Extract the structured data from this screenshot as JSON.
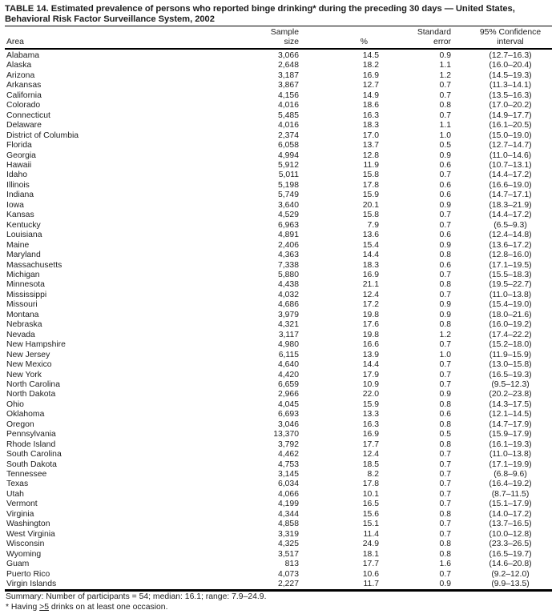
{
  "document": {
    "title": "TABLE 14. Estimated prevalence of persons who reported binge drinking* during the preceding 30 days — United States, Behavioral Risk Factor Surveillance System, 2002",
    "summary": "Summary: Number of participants = 54; median: 16.1; range: 7.9–24.9.",
    "footnote": {
      "prefix": "* Having ",
      "underlined": ">5",
      "suffix": " drinks on at least one occasion."
    }
  },
  "table": {
    "headers": [
      "Area",
      "Sample\nsize",
      "%",
      "Standard\nerror",
      "95% Confidence\ninterval"
    ],
    "column_names": [
      "area",
      "sample-size",
      "percent",
      "standard-error",
      "confidence-interval"
    ],
    "column_aligns": [
      "left",
      "right",
      "right",
      "right",
      "center"
    ],
    "rows": [
      [
        "Alabama",
        "3,066",
        "14.5",
        "0.9",
        "(12.7–16.3)"
      ],
      [
        "Alaska",
        "2,648",
        "18.2",
        "1.1",
        "(16.0–20.4)"
      ],
      [
        "Arizona",
        "3,187",
        "16.9",
        "1.2",
        "(14.5–19.3)"
      ],
      [
        "Arkansas",
        "3,867",
        "12.7",
        "0.7",
        "(11.3–14.1)"
      ],
      [
        "California",
        "4,156",
        "14.9",
        "0.7",
        "(13.5–16.3)"
      ],
      [
        "Colorado",
        "4,016",
        "18.6",
        "0.8",
        "(17.0–20.2)"
      ],
      [
        "Connecticut",
        "5,485",
        "16.3",
        "0.7",
        "(14.9–17.7)"
      ],
      [
        "Delaware",
        "4,016",
        "18.3",
        "1.1",
        "(16.1–20.5)"
      ],
      [
        "District of Columbia",
        "2,374",
        "17.0",
        "1.0",
        "(15.0–19.0)"
      ],
      [
        "Florida",
        "6,058",
        "13.7",
        "0.5",
        "(12.7–14.7)"
      ],
      [
        "Georgia",
        "4,994",
        "12.8",
        "0.9",
        "(11.0–14.6)"
      ],
      [
        "Hawaii",
        "5,912",
        "11.9",
        "0.6",
        "(10.7–13.1)"
      ],
      [
        "Idaho",
        "5,011",
        "15.8",
        "0.7",
        "(14.4–17.2)"
      ],
      [
        "Illinois",
        "5,198",
        "17.8",
        "0.6",
        "(16.6–19.0)"
      ],
      [
        "Indiana",
        "5,749",
        "15.9",
        "0.6",
        "(14.7–17.1)"
      ],
      [
        "Iowa",
        "3,640",
        "20.1",
        "0.9",
        "(18.3–21.9)"
      ],
      [
        "Kansas",
        "4,529",
        "15.8",
        "0.7",
        "(14.4–17.2)"
      ],
      [
        "Kentucky",
        "6,963",
        "7.9",
        "0.7",
        "(6.5–9.3)"
      ],
      [
        "Louisiana",
        "4,891",
        "13.6",
        "0.6",
        "(12.4–14.8)"
      ],
      [
        "Maine",
        "2,406",
        "15.4",
        "0.9",
        "(13.6–17.2)"
      ],
      [
        "Maryland",
        "4,363",
        "14.4",
        "0.8",
        "(12.8–16.0)"
      ],
      [
        "Massachusetts",
        "7,338",
        "18.3",
        "0.6",
        "(17.1–19.5)"
      ],
      [
        "Michigan",
        "5,880",
        "16.9",
        "0.7",
        "(15.5–18.3)"
      ],
      [
        "Minnesota",
        "4,438",
        "21.1",
        "0.8",
        "(19.5–22.7)"
      ],
      [
        "Mississippi",
        "4,032",
        "12.4",
        "0.7",
        "(11.0–13.8)"
      ],
      [
        "Missouri",
        "4,686",
        "17.2",
        "0.9",
        "(15.4–19.0)"
      ],
      [
        "Montana",
        "3,979",
        "19.8",
        "0.9",
        "(18.0–21.6)"
      ],
      [
        "Nebraska",
        "4,321",
        "17.6",
        "0.8",
        "(16.0–19.2)"
      ],
      [
        "Nevada",
        "3,117",
        "19.8",
        "1.2",
        "(17.4–22.2)"
      ],
      [
        "New Hampshire",
        "4,980",
        "16.6",
        "0.7",
        "(15.2–18.0)"
      ],
      [
        "New Jersey",
        "6,115",
        "13.9",
        "1.0",
        "(11.9–15.9)"
      ],
      [
        "New Mexico",
        "4,640",
        "14.4",
        "0.7",
        "(13.0–15.8)"
      ],
      [
        "New York",
        "4,420",
        "17.9",
        "0.7",
        "(16.5–19.3)"
      ],
      [
        "North Carolina",
        "6,659",
        "10.9",
        "0.7",
        "(9.5–12.3)"
      ],
      [
        "North Dakota",
        "2,966",
        "22.0",
        "0.9",
        "(20.2–23.8)"
      ],
      [
        "Ohio",
        "4,045",
        "15.9",
        "0.8",
        "(14.3–17.5)"
      ],
      [
        "Oklahoma",
        "6,693",
        "13.3",
        "0.6",
        "(12.1–14.5)"
      ],
      [
        "Oregon",
        "3,046",
        "16.3",
        "0.8",
        "(14.7–17.9)"
      ],
      [
        "Pennsylvania",
        "13,370",
        "16.9",
        "0.5",
        "(15.9–17.9)"
      ],
      [
        "Rhode Island",
        "3,792",
        "17.7",
        "0.8",
        "(16.1–19.3)"
      ],
      [
        "South Carolina",
        "4,462",
        "12.4",
        "0.7",
        "(11.0–13.8)"
      ],
      [
        "South Dakota",
        "4,753",
        "18.5",
        "0.7",
        "(17.1–19.9)"
      ],
      [
        "Tennessee",
        "3,145",
        "8.2",
        "0.7",
        "(6.8–9.6)"
      ],
      [
        "Texas",
        "6,034",
        "17.8",
        "0.7",
        "(16.4–19.2)"
      ],
      [
        "Utah",
        "4,066",
        "10.1",
        "0.7",
        "(8.7–11.5)"
      ],
      [
        "Vermont",
        "4,199",
        "16.5",
        "0.7",
        "(15.1–17.9)"
      ],
      [
        "Virginia",
        "4,344",
        "15.6",
        "0.8",
        "(14.0–17.2)"
      ],
      [
        "Washington",
        "4,858",
        "15.1",
        "0.7",
        "(13.7–16.5)"
      ],
      [
        "West Virginia",
        "3,319",
        "11.4",
        "0.7",
        "(10.0–12.8)"
      ],
      [
        "Wisconsin",
        "4,325",
        "24.9",
        "0.8",
        "(23.3–26.5)"
      ],
      [
        "Wyoming",
        "3,517",
        "18.1",
        "0.8",
        "(16.5–19.7)"
      ],
      [
        "Guam",
        "813",
        "17.7",
        "1.6",
        "(14.6–20.8)"
      ],
      [
        "Puerto Rico",
        "4,073",
        "10.6",
        "0.7",
        "(9.2–12.0)"
      ],
      [
        "Virgin Islands",
        "2,227",
        "11.7",
        "0.9",
        "(9.9–13.5)"
      ]
    ]
  },
  "colors": {
    "background": "#ffffff",
    "text": "#1c1c1c",
    "rule": "#000000"
  }
}
